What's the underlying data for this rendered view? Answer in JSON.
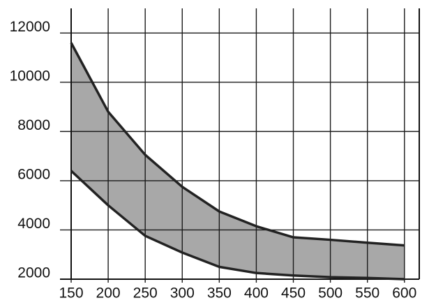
{
  "chart_data": {
    "type": "range-area",
    "x": [
      150,
      200,
      250,
      300,
      350,
      400,
      450,
      500,
      550,
      600
    ],
    "series": [
      {
        "color": "#222222",
        "values": [
          11600,
          8800,
          7050,
          5750,
          4750,
          4150,
          3700,
          3600,
          3480,
          3370
        ]
      },
      {
        "color": "#222222",
        "values": [
          6400,
          5000,
          3760,
          3080,
          2500,
          2250,
          2150,
          2080,
          2050,
          2000
        ]
      }
    ],
    "fill": "#a8a8a8",
    "xlim": [
      150,
      620
    ],
    "ylim": [
      2000,
      13000
    ],
    "xticks": [
      150,
      200,
      250,
      300,
      350,
      400,
      450,
      500,
      550,
      600
    ],
    "yticks": [
      2000,
      4000,
      6000,
      8000,
      10000,
      12000
    ],
    "grid": true
  }
}
